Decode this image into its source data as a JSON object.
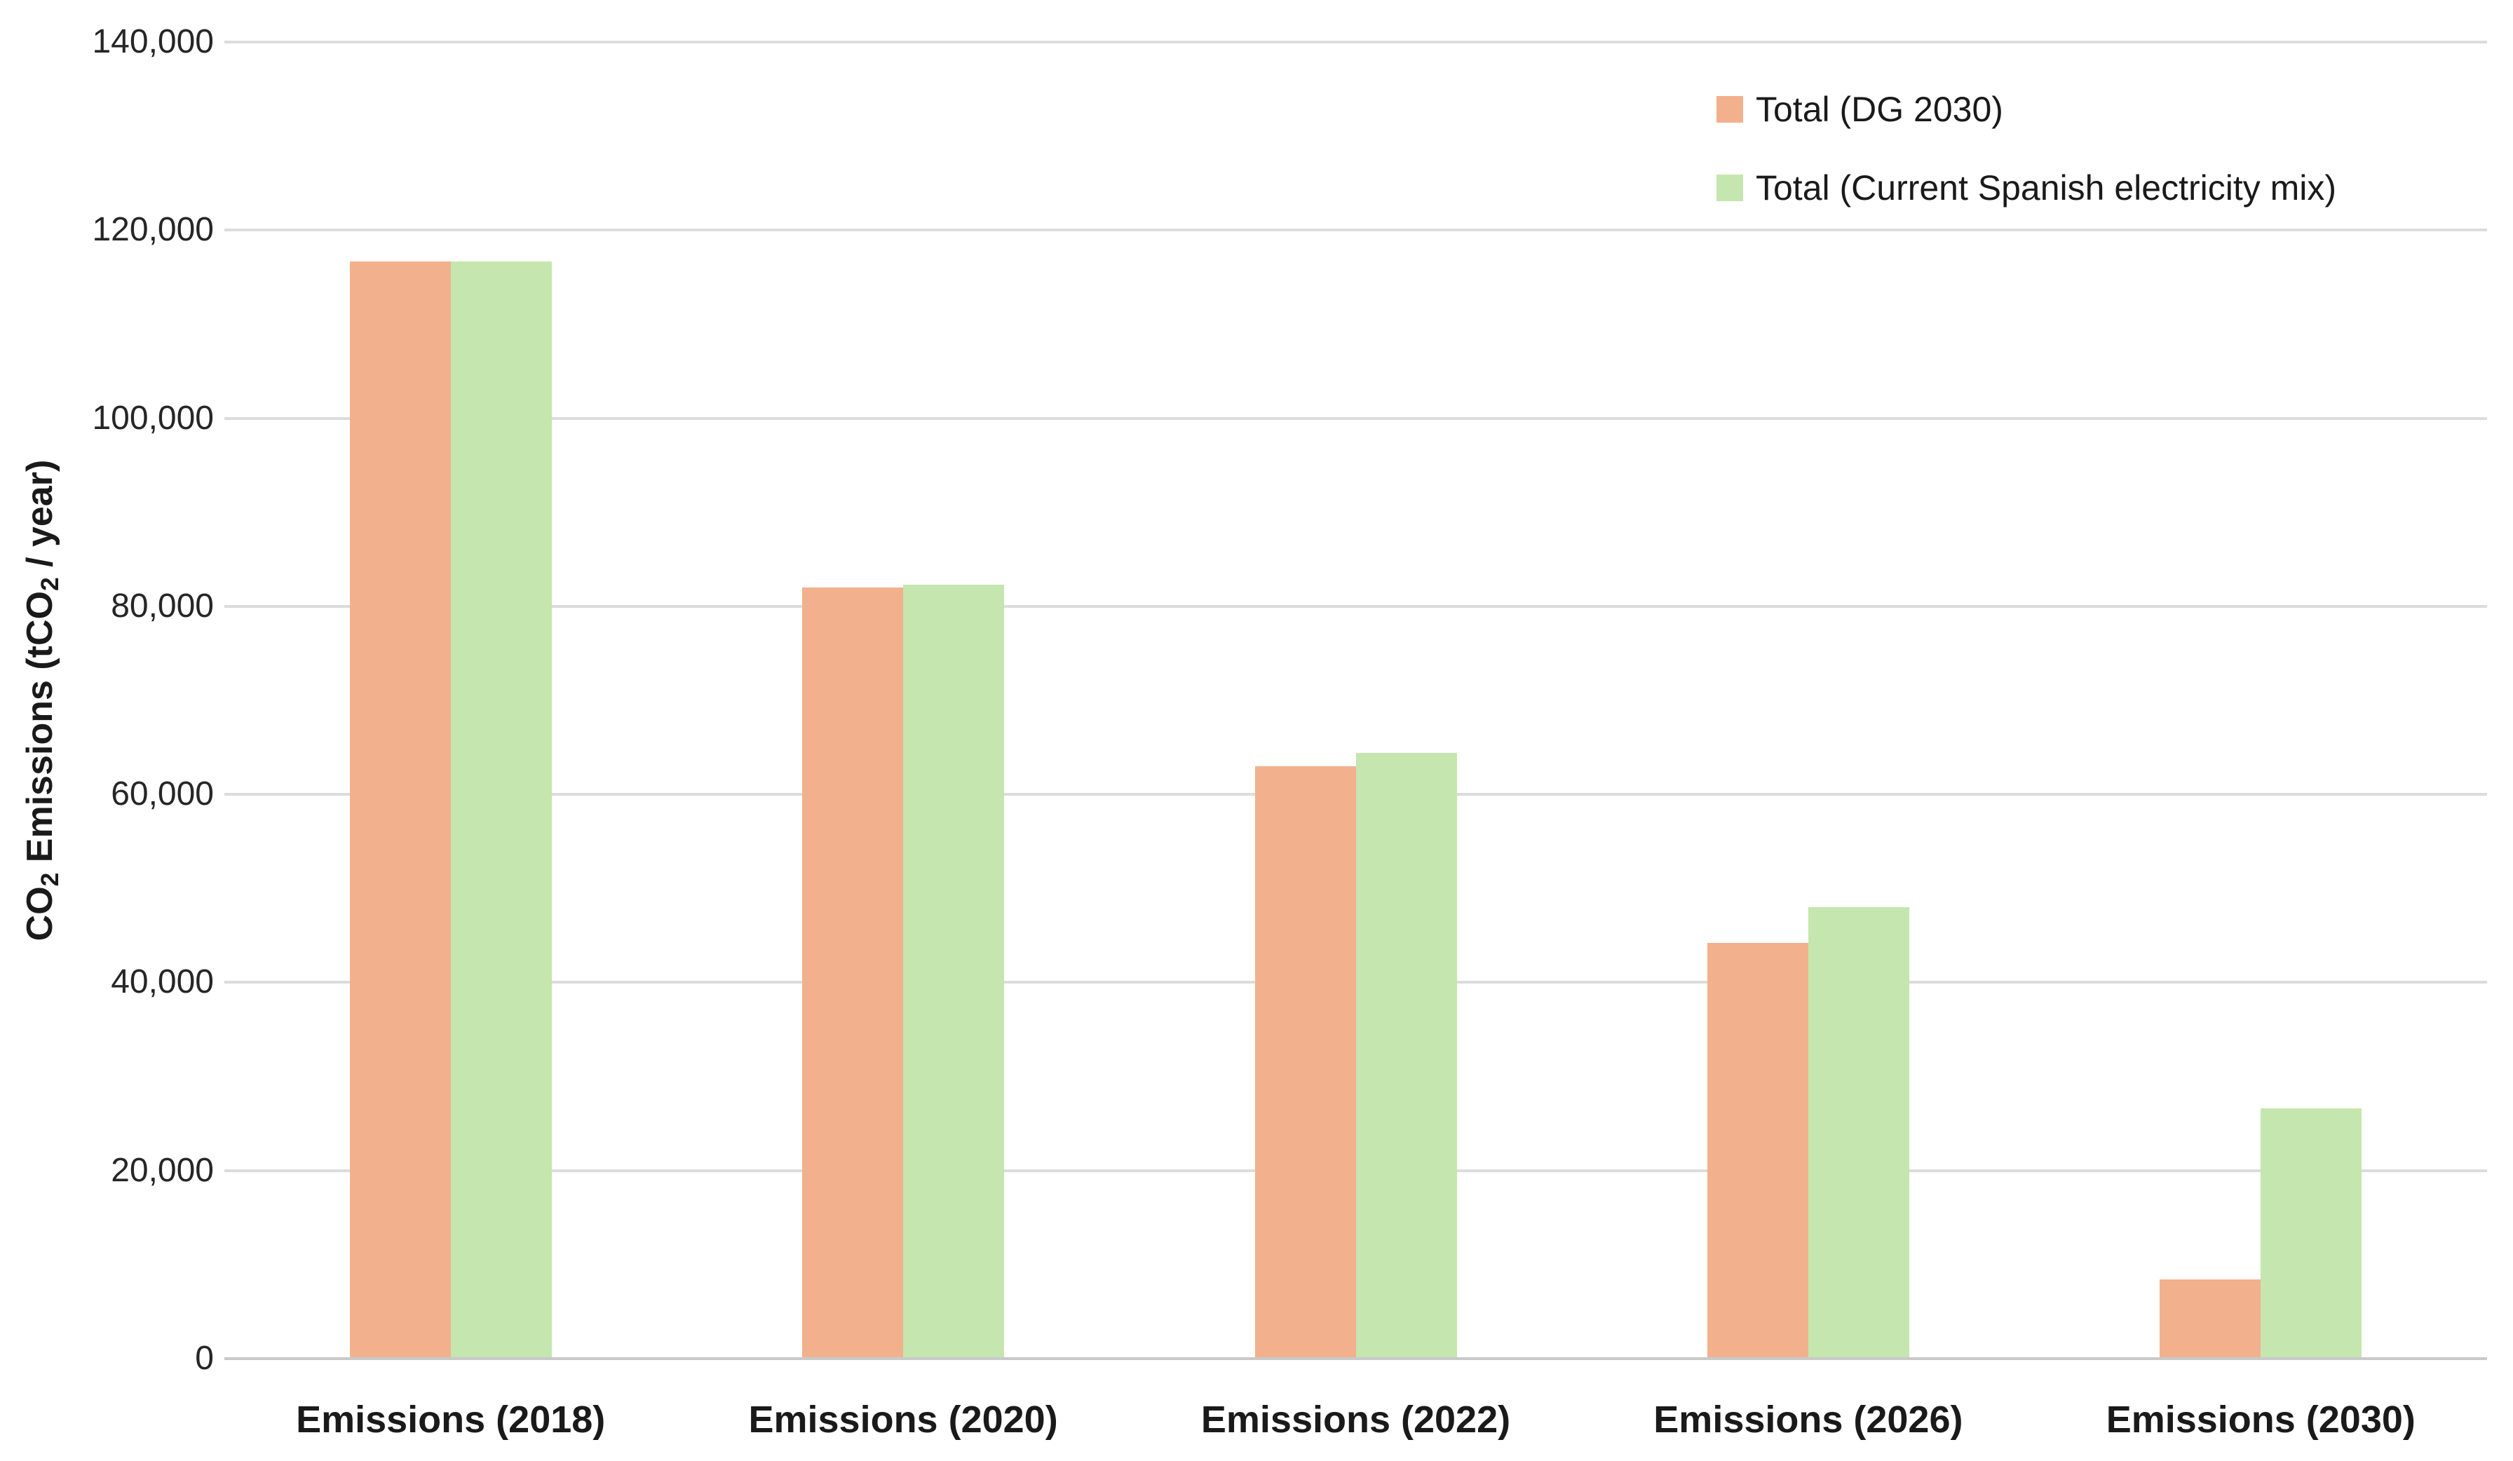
{
  "chart_data": {
    "type": "bar",
    "title": "",
    "ylabel_plain": "CO2 Emissions (tCO2 / year)",
    "ylabel_segments": [
      {
        "t": "CO"
      },
      {
        "sub": "2"
      },
      {
        "t": " Emissions (tCO"
      },
      {
        "sub": "2"
      },
      {
        "t": " / year)"
      }
    ],
    "categories": [
      "Emissions (2018)",
      "Emissions (2020)",
      "Emissions (2022)",
      "Emissions (2026)",
      "Emissions (2030)"
    ],
    "series": [
      {
        "name": "Total (DG 2030)",
        "color": "#F2B18C",
        "values": [
          116700,
          82000,
          63000,
          44200,
          8400
        ]
      },
      {
        "name": "Total (Current Spanish electricity mix)",
        "color": "#C5E6AE",
        "values": [
          116700,
          82300,
          64400,
          48000,
          26600
        ]
      }
    ],
    "ylim": [
      0,
      140000
    ],
    "ytick_step": 20000,
    "yticks": [
      {
        "value": 0,
        "label": "0"
      },
      {
        "value": 20000,
        "label": "20,000"
      },
      {
        "value": 40000,
        "label": "40,000"
      },
      {
        "value": 60000,
        "label": "60,000"
      },
      {
        "value": 80000,
        "label": "80,000"
      },
      {
        "value": 100000,
        "label": "100,000"
      },
      {
        "value": 120000,
        "label": "120,000"
      },
      {
        "value": 140000,
        "label": "140,000"
      }
    ],
    "grid": "horizontal",
    "legend_position": "top-right",
    "colors": {
      "grid": "#dcdcdc",
      "axis_line": "#c9c9c9",
      "tick_text": "#262626",
      "category_text": "#1a1a1a"
    }
  }
}
